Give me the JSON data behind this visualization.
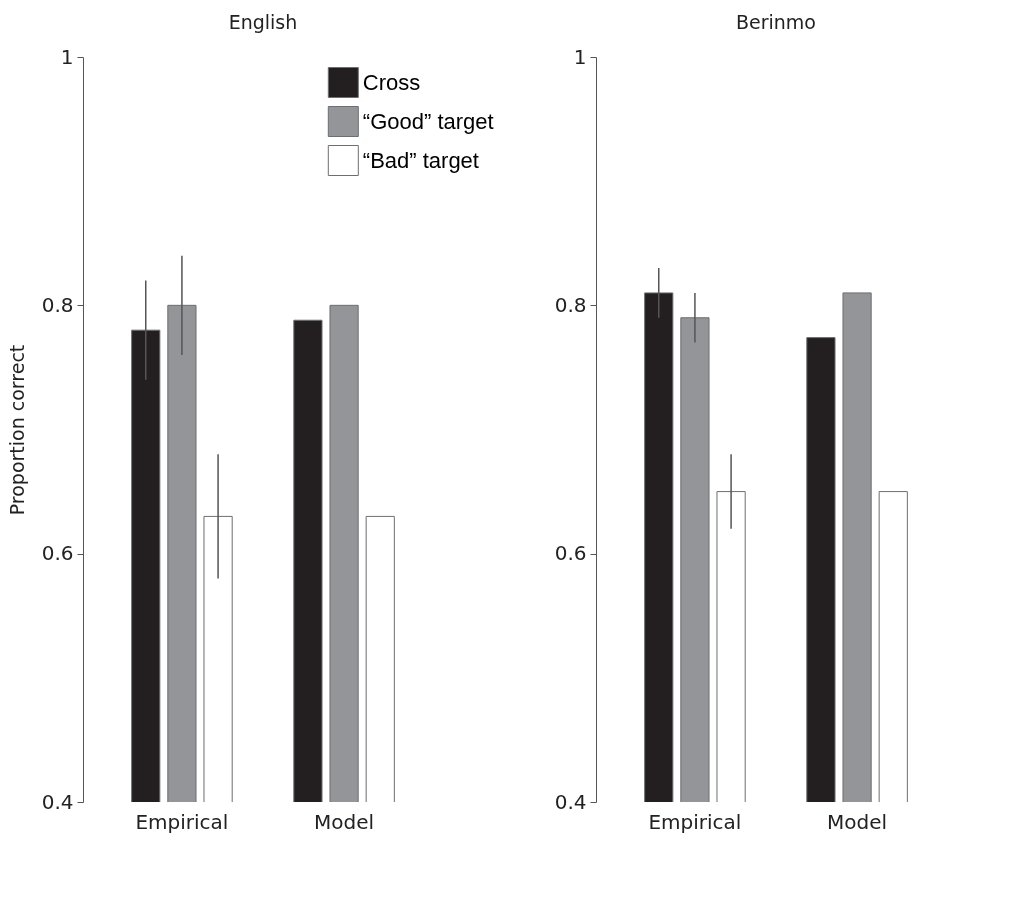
{
  "chart_data": [
    {
      "type": "bar",
      "title": "English",
      "ylabel": "Proportion correct",
      "categories": [
        "Empirical",
        "Model"
      ],
      "ylim": [
        0.4,
        1
      ],
      "yticks": [
        0.4,
        0.6,
        0.8,
        1
      ],
      "legend": "top right",
      "series": [
        {
          "name": "Cross",
          "color": "#231f20",
          "values": [
            0.78,
            0.788
          ],
          "errors": [
            0.04,
            null
          ]
        },
        {
          "name": "“Good” target",
          "color": "#939598",
          "values": [
            0.8,
            0.8
          ],
          "errors": [
            0.04,
            null
          ]
        },
        {
          "name": "“Bad” target",
          "color": "#ffffff",
          "values": [
            0.63,
            0.63
          ],
          "errors": [
            0.05,
            null
          ]
        }
      ]
    },
    {
      "type": "bar",
      "title": "Berinmo",
      "categories": [
        "Empirical",
        "Model"
      ],
      "ylim": [
        0.4,
        1
      ],
      "yticks": [
        0.4,
        0.6,
        0.8,
        1
      ],
      "series": [
        {
          "color": "#231f20",
          "values": [
            0.81,
            0.774
          ],
          "errors": [
            0.02,
            null
          ]
        },
        {
          "color": "#939598",
          "values": [
            0.79,
            0.81
          ],
          "errors": [
            0.02,
            null
          ]
        },
        {
          "color": "#ffffff",
          "values": [
            0.65,
            0.65
          ],
          "errors": [
            0.03,
            null
          ]
        }
      ]
    }
  ]
}
